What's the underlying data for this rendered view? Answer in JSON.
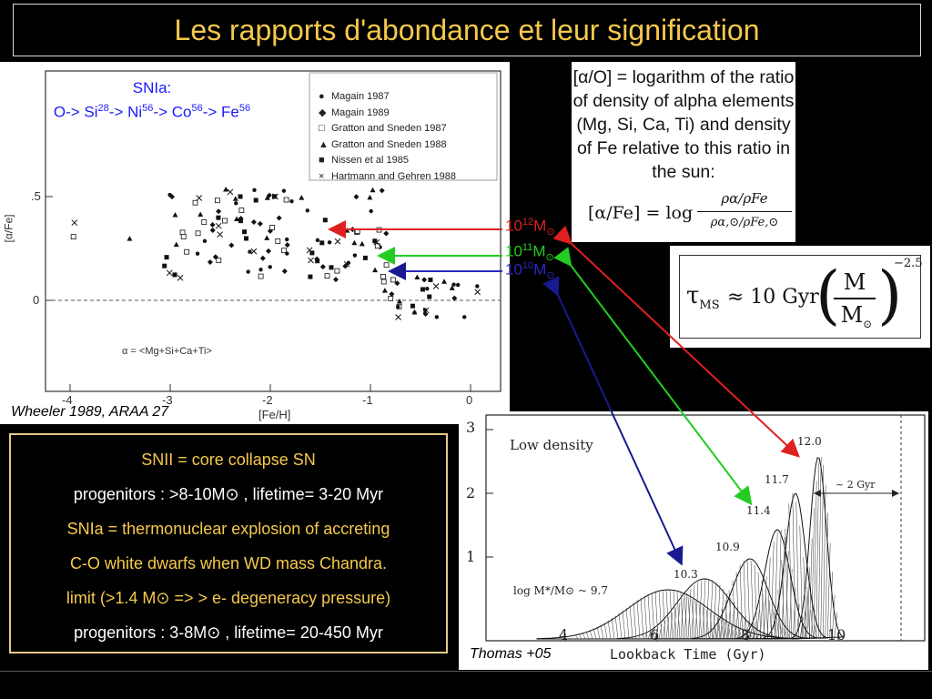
{
  "slide": {
    "title": "Les rapports d'abondance et leur signification"
  },
  "snia_chain": {
    "line1": "SNIa:",
    "line2_parts": [
      "O-> Si",
      "28",
      "-> Ni",
      "56",
      "-> Co",
      "56",
      "-> Fe",
      "56"
    ]
  },
  "left_plot": {
    "credit": "Wheeler 1989, ARAA 27",
    "ylabel": "[α/Fe]",
    "xlabel": "[Fe/H]",
    "xticks": [
      "-4",
      "-3",
      "-2",
      "-1",
      "0"
    ],
    "yticks": [
      ".5",
      "0"
    ],
    "alpha_def": "α = <Mg+Si+Ca+Ti>",
    "legend": [
      {
        "symbol": "filled-circle",
        "label": "Magain 1987"
      },
      {
        "symbol": "filled-diamond",
        "label": "Magain 1989"
      },
      {
        "symbol": "open-square",
        "label": "Gratton and Sneden 1987"
      },
      {
        "symbol": "filled-triangle",
        "label": "Gratton and Sneden 1988"
      },
      {
        "symbol": "filled-square",
        "label": "Nissen et al 1985"
      },
      {
        "symbol": "cross",
        "label": "Hartmann and Gehren 1988"
      }
    ]
  },
  "mass_labels": [
    {
      "base": "10",
      "exp": "12",
      "unit": "M",
      "sub": "⊙",
      "color": "#e02020"
    },
    {
      "base": "10",
      "exp": "11",
      "unit": "M",
      "sub": "⊙",
      "color": "#22cc22"
    },
    {
      "base": "10",
      "exp": "10",
      "unit": "M",
      "sub": "⊙",
      "color": "#2a2ac0"
    }
  ],
  "definition": {
    "text": "[α/O] = logarithm of the ratio of density of alpha elements (Mg, Si, Ca, Ti) and density of Fe relative to this ratio in the sun:",
    "formula_lhs": "[α/Fe] = log",
    "formula_num": "ρα/ρFe",
    "formula_den": "ρα,⊙/ρFe,⊙"
  },
  "lifetime_formula": {
    "lhs": "τ",
    "lhs_sub": "MS",
    "approx": "≈ 10 Gyr",
    "num": "M",
    "den": "M",
    "den_sub": "⊙",
    "exponent": "−2.5"
  },
  "info": {
    "lines": [
      {
        "text": "SNII = core collapse SN",
        "color": "yellow"
      },
      {
        "text": "progenitors : >8-10M⊙ , lifetime= 3-20 Myr",
        "color": "white"
      },
      {
        "text": "SNIa = thermonuclear explosion of accreting",
        "color": "yellow"
      },
      {
        "text": "C-O white dwarfs when WD mass Chandra.",
        "color": "yellow"
      },
      {
        "text": "limit (>1.4 M⊙ => > e-  degeneracy pressure)",
        "color": "yellow"
      },
      {
        "text": "progenitors : 3-8M⊙ , lifetime= 20-450 Myr",
        "color": "white"
      }
    ]
  },
  "right_plot": {
    "credit": "Thomas +05",
    "label": "Low density",
    "xlabel": "Lookback Time (Gyr)",
    "xticks": [
      "4",
      "6",
      "8",
      "10"
    ],
    "yticks": [
      "1",
      "2",
      "3"
    ],
    "curve_label": "log M*/M⊙ ~ 9.7",
    "peak_labels": [
      "10.3",
      "10.9",
      "11.4",
      "11.7",
      "12.0"
    ],
    "gyr_annotation": "~ 2 Gyr"
  }
}
